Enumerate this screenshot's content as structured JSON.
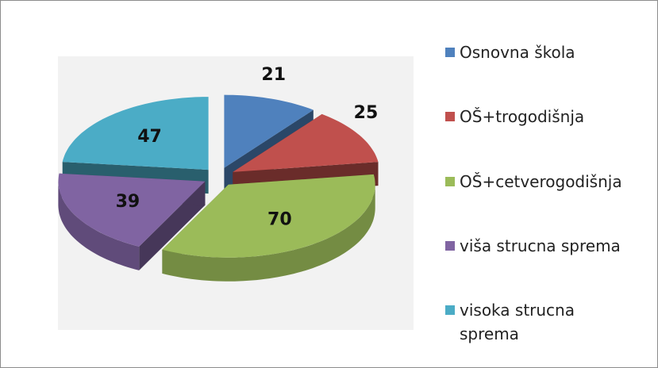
{
  "chart_data": {
    "type": "pie3d",
    "categories": [
      "Osnovna škola",
      "OŠ+trogodišnja",
      "OŠ+cetverogodišnja",
      "viša strucna sprema",
      "visoka strucna sprema"
    ],
    "values": [
      21,
      25,
      70,
      39,
      47
    ],
    "colors": [
      "#4f81bd",
      "#c0504d",
      "#9bbb59",
      "#8064a2",
      "#4bacc6"
    ],
    "legend": "right"
  }
}
